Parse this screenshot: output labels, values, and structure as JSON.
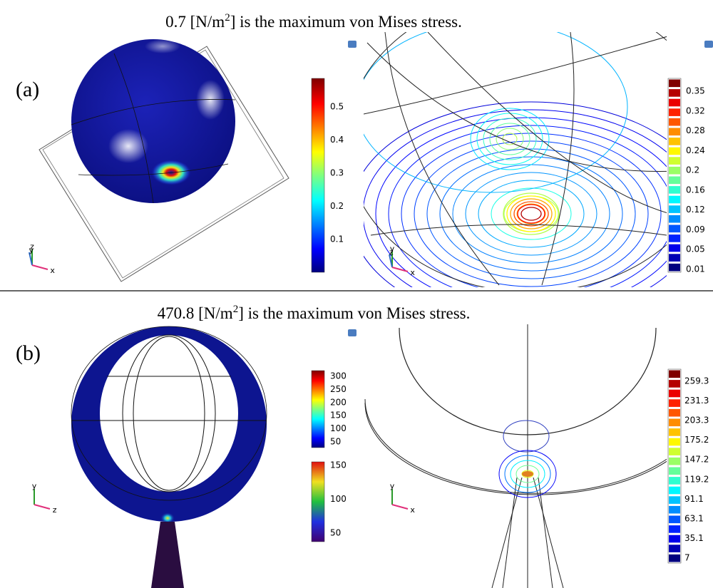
{
  "panels": [
    {
      "label": "(a)",
      "title": {
        "before": "0.7 [N/m",
        "sup": "2",
        "after": "] is the maximum von Mises stress."
      },
      "surface_colorbar": [
        "0.5",
        "0.4",
        "0.3",
        "0.2",
        "0.1"
      ],
      "contour_colorbar": [
        "0.35",
        "0.32",
        "0.28",
        "0.24",
        "0.2",
        "0.16",
        "0.12",
        "0.09",
        "0.05",
        "0.01"
      ],
      "surface_axes": [
        "z",
        "y",
        "x"
      ],
      "contour_axes": [
        "y",
        "z",
        "x"
      ]
    },
    {
      "label": "(b)",
      "title": {
        "before": "470.8 [N/m",
        "sup": "2",
        "after": "] is the maximum von Mises stress."
      },
      "surface_colorbar": [
        "300",
        "250",
        "200",
        "150",
        "100",
        "50"
      ],
      "lower_colorbar": [
        "150",
        "100",
        "50"
      ],
      "contour_colorbar": [
        "259.3",
        "231.3",
        "203.3",
        "175.2",
        "147.2",
        "119.2",
        "91.1",
        "63.1",
        "35.1",
        "7"
      ],
      "surface_axes": [
        "y",
        "z"
      ],
      "contour_axes": [
        "y",
        "x"
      ]
    }
  ]
}
